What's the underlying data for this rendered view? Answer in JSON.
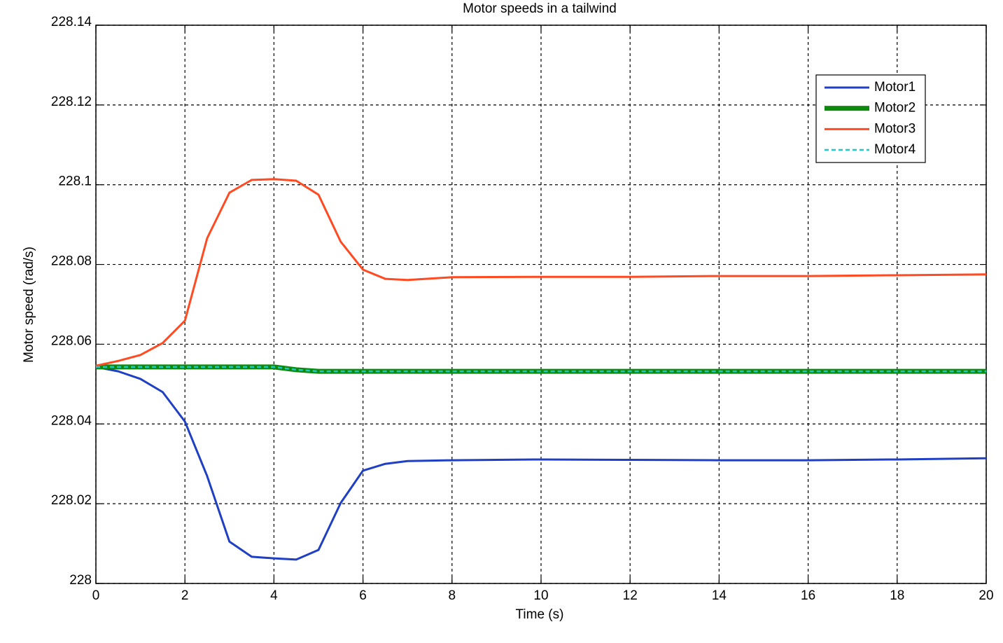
{
  "chart_data": {
    "type": "line",
    "title": "Motor speeds in a tailwind",
    "x_label": "Time (s)",
    "y_label": "Motor speed (rad/s)",
    "x": [
      0,
      0.5,
      1,
      1.5,
      2,
      2.5,
      3,
      3.5,
      4,
      4.5,
      5,
      5.5,
      6,
      6.5,
      7,
      8,
      10,
      12,
      14,
      16,
      18,
      20
    ],
    "series": [
      {
        "name": "Motor1",
        "color": "#1f3fc4",
        "width": 3,
        "dashed": false,
        "values": [
          228.0543,
          228.0532,
          228.0513,
          228.048,
          228.0406,
          228.0269,
          228.0105,
          228.0067,
          228.0063,
          228.006,
          228.0084,
          228.0202,
          228.0283,
          228.03,
          228.0307,
          228.0309,
          228.0311,
          228.031,
          228.0309,
          228.0309,
          228.0311,
          228.0314
        ]
      },
      {
        "name": "Motor2",
        "color": "#0b8a0b",
        "width": 7,
        "dashed": false,
        "values": [
          228.0543,
          228.0543,
          228.0543,
          228.0543,
          228.0543,
          228.0543,
          228.0543,
          228.0543,
          228.0543,
          228.0536,
          228.0532,
          228.0532,
          228.0532,
          228.0532,
          228.0532,
          228.0532,
          228.0532,
          228.0532,
          228.0532,
          228.0532,
          228.0532,
          228.0532
        ]
      },
      {
        "name": "Motor3",
        "color": "#ff4a22",
        "width": 3,
        "dashed": false,
        "values": [
          228.0546,
          228.0558,
          228.0573,
          228.0603,
          228.0659,
          228.0866,
          228.098,
          228.1012,
          228.1014,
          228.101,
          228.0975,
          228.0857,
          228.0787,
          228.0764,
          228.0761,
          228.0768,
          228.0769,
          228.0769,
          228.0771,
          228.0771,
          228.0773,
          228.0775
        ]
      },
      {
        "name": "Motor4",
        "color": "#22c8c8",
        "width": 2.5,
        "dashed": true,
        "values": [
          228.0543,
          228.0543,
          228.0543,
          228.0543,
          228.0543,
          228.0543,
          228.0543,
          228.0543,
          228.0543,
          228.0536,
          228.0532,
          228.0532,
          228.0532,
          228.0532,
          228.0532,
          228.0532,
          228.0532,
          228.0532,
          228.0532,
          228.0532,
          228.0532,
          228.0532
        ]
      }
    ],
    "xlim": [
      0,
      20
    ],
    "xticks": [
      0,
      2,
      4,
      6,
      8,
      10,
      12,
      14,
      16,
      18,
      20
    ],
    "ylim": [
      228,
      228.14
    ],
    "yticks": [
      228,
      228.02,
      228.04,
      228.06,
      228.08,
      228.1,
      228.12,
      228.14
    ],
    "grid": true,
    "legend": "upper-right"
  }
}
